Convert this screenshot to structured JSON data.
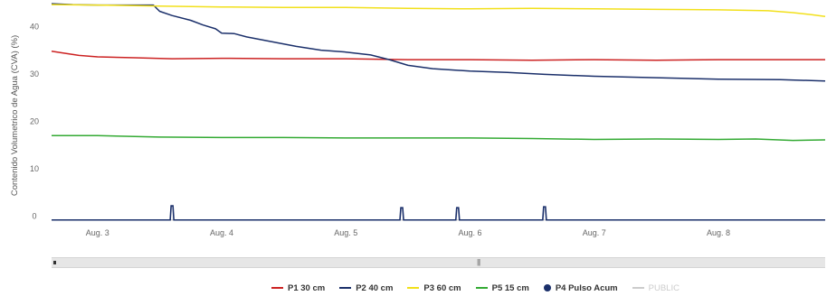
{
  "chart_data": {
    "type": "line",
    "title": "",
    "xlabel": "",
    "ylabel": "Contenido Volumetrico de Agua (CVA) (%)",
    "x_ticks": [
      "Aug. 3",
      "Aug. 4",
      "Aug. 5",
      "Aug. 6",
      "Aug. 7",
      "Aug. 8"
    ],
    "x_tick_days": [
      3,
      4,
      5,
      6,
      7,
      8
    ],
    "xlim": [
      2.63,
      8.86
    ],
    "y_ticks": [
      0,
      10,
      20,
      30,
      40
    ],
    "ylim": [
      -1,
      45
    ],
    "grid": false,
    "legend_position": "bottom",
    "series": [
      {
        "name": "P1 30 cm",
        "color": "#cc2222",
        "type": "line",
        "points": [
          [
            2.63,
            34.8
          ],
          [
            2.7,
            34.5
          ],
          [
            2.85,
            33.9
          ],
          [
            3.0,
            33.6
          ],
          [
            3.3,
            33.4
          ],
          [
            3.6,
            33.2
          ],
          [
            4.0,
            33.3
          ],
          [
            4.5,
            33.2
          ],
          [
            5.0,
            33.2
          ],
          [
            5.5,
            33.0
          ],
          [
            6.0,
            33.0
          ],
          [
            6.5,
            32.9
          ],
          [
            7.0,
            33.0
          ],
          [
            7.5,
            32.9
          ],
          [
            8.0,
            33.0
          ],
          [
            8.5,
            33.0
          ],
          [
            8.86,
            33.0
          ]
        ]
      },
      {
        "name": "P2 40 cm",
        "color": "#1a2f6a",
        "type": "line",
        "points": [
          [
            2.63,
            44.8
          ],
          [
            2.8,
            44.6
          ],
          [
            3.0,
            44.5
          ],
          [
            3.3,
            44.5
          ],
          [
            3.45,
            44.5
          ],
          [
            3.5,
            43.2
          ],
          [
            3.6,
            42.3
          ],
          [
            3.75,
            41.3
          ],
          [
            3.85,
            40.3
          ],
          [
            3.95,
            39.5
          ],
          [
            4.0,
            38.6
          ],
          [
            4.1,
            38.5
          ],
          [
            4.2,
            37.8
          ],
          [
            4.4,
            36.8
          ],
          [
            4.6,
            35.8
          ],
          [
            4.8,
            35.0
          ],
          [
            5.0,
            34.6
          ],
          [
            5.2,
            34.0
          ],
          [
            5.35,
            33.0
          ],
          [
            5.5,
            31.8
          ],
          [
            5.7,
            31.1
          ],
          [
            6.0,
            30.6
          ],
          [
            6.3,
            30.3
          ],
          [
            6.6,
            29.9
          ],
          [
            7.0,
            29.5
          ],
          [
            7.5,
            29.2
          ],
          [
            8.0,
            28.9
          ],
          [
            8.5,
            28.8
          ],
          [
            8.86,
            28.5
          ]
        ]
      },
      {
        "name": "P3 60 cm",
        "color": "#f2e01a",
        "type": "line",
        "points": [
          [
            2.63,
            44.6
          ],
          [
            3.0,
            44.5
          ],
          [
            3.5,
            44.3
          ],
          [
            4.0,
            44.1
          ],
          [
            4.5,
            44.0
          ],
          [
            5.0,
            44.0
          ],
          [
            5.5,
            43.8
          ],
          [
            6.0,
            43.7
          ],
          [
            6.5,
            43.8
          ],
          [
            7.0,
            43.7
          ],
          [
            7.5,
            43.6
          ],
          [
            8.0,
            43.5
          ],
          [
            8.4,
            43.3
          ],
          [
            8.6,
            42.9
          ],
          [
            8.75,
            42.5
          ],
          [
            8.86,
            42.1
          ]
        ]
      },
      {
        "name": "P5 15 cm",
        "color": "#33aa33",
        "type": "line",
        "points": [
          [
            2.63,
            17.0
          ],
          [
            3.0,
            17.0
          ],
          [
            3.5,
            16.7
          ],
          [
            4.0,
            16.6
          ],
          [
            4.5,
            16.6
          ],
          [
            5.0,
            16.5
          ],
          [
            5.5,
            16.5
          ],
          [
            6.0,
            16.5
          ],
          [
            6.5,
            16.4
          ],
          [
            7.0,
            16.2
          ],
          [
            7.5,
            16.3
          ],
          [
            8.0,
            16.2
          ],
          [
            8.3,
            16.3
          ],
          [
            8.6,
            16.0
          ],
          [
            8.86,
            16.1
          ]
        ]
      },
      {
        "name": "P4 Pulso Acum",
        "color": "#1a2f6a",
        "type": "pulse",
        "baseline": 0,
        "points": [
          [
            3.6,
            2.6
          ],
          [
            5.45,
            2.2
          ],
          [
            5.9,
            2.2
          ],
          [
            6.6,
            2.4
          ]
        ]
      },
      {
        "name": "PUBLIC",
        "color": "#cccccc",
        "type": "line",
        "hidden": true,
        "points": []
      }
    ]
  },
  "navigator": {
    "grip_label": "|||"
  }
}
